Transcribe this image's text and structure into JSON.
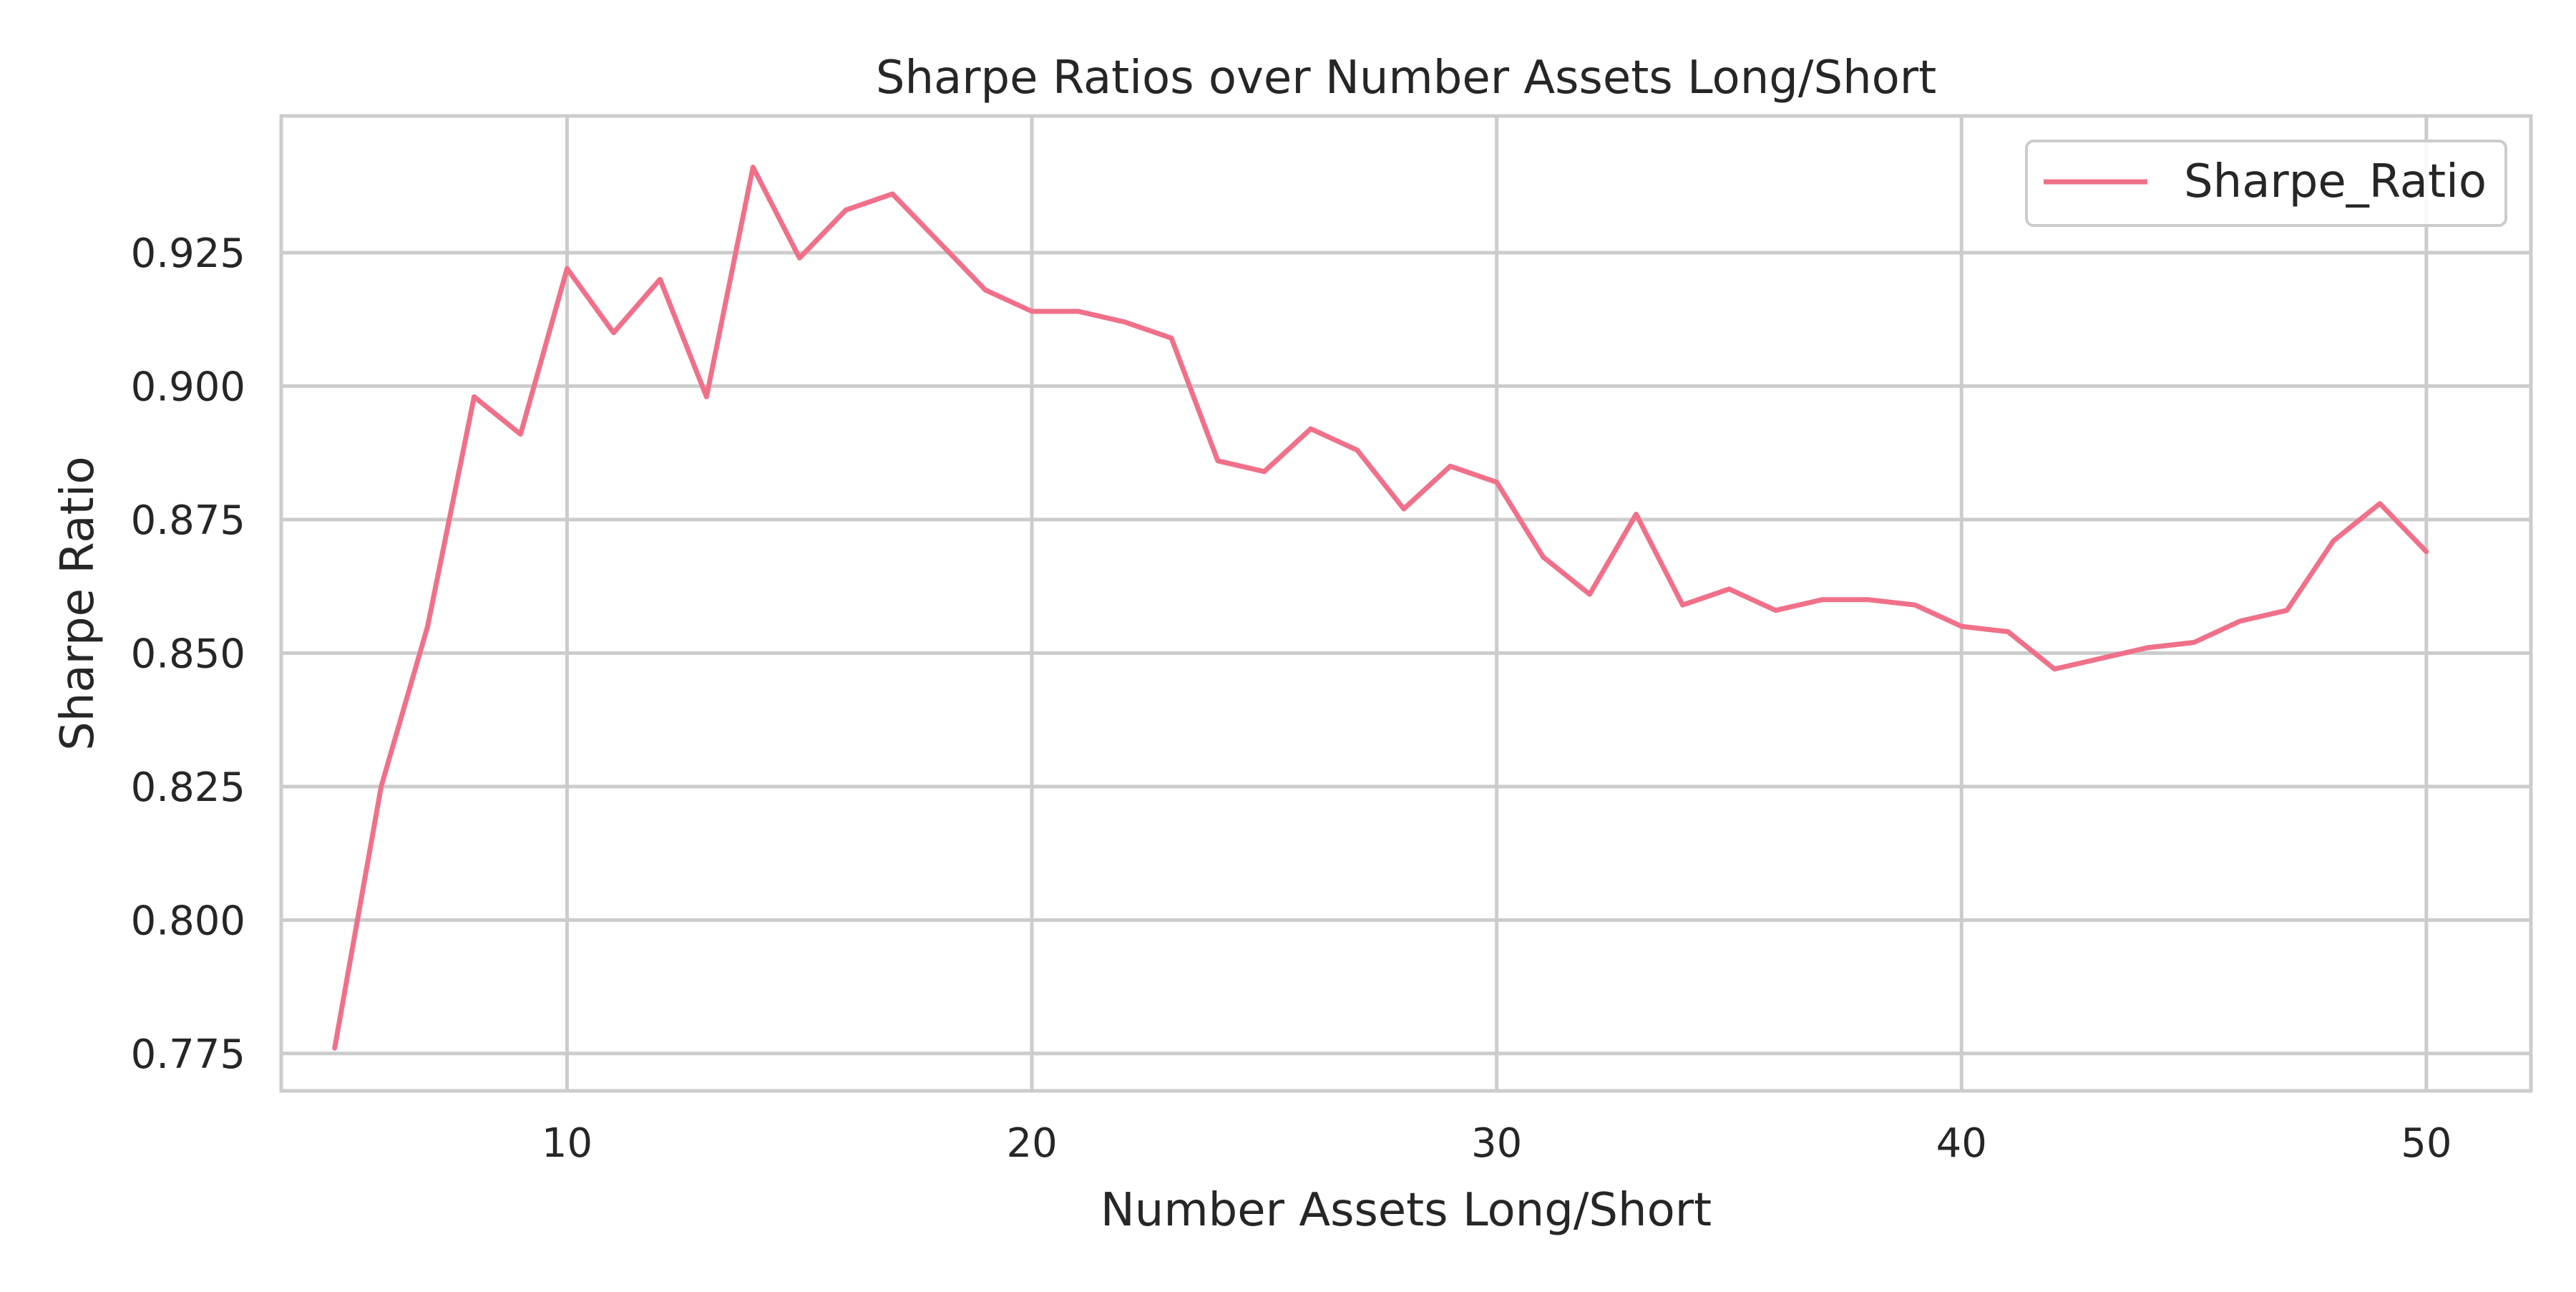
{
  "chart_data": {
    "type": "line",
    "title": "Sharpe Ratios over Number Assets Long/Short",
    "xlabel": "Number Assets Long/Short",
    "ylabel": "Sharpe Ratio",
    "xlim": [
      3.85,
      52.25
    ],
    "ylim": [
      0.768,
      0.9506
    ],
    "xticks": [
      10,
      20,
      30,
      40,
      50
    ],
    "xtick_labels": [
      "10",
      "20",
      "30",
      "40",
      "50"
    ],
    "yticks": [
      0.775,
      0.8,
      0.825,
      0.85,
      0.875,
      0.9,
      0.925
    ],
    "ytick_labels": [
      "0.775",
      "0.800",
      "0.825",
      "0.850",
      "0.875",
      "0.900",
      "0.925"
    ],
    "grid": true,
    "legend_position": "top-right",
    "series": [
      {
        "name": "Sharpe_Ratio",
        "color": "#f0708a",
        "x": [
          5,
          6,
          7,
          8,
          9,
          10,
          11,
          12,
          13,
          14,
          15,
          16,
          17,
          18,
          19,
          20,
          21,
          22,
          23,
          24,
          25,
          26,
          27,
          28,
          29,
          30,
          31,
          32,
          33,
          34,
          35,
          36,
          37,
          38,
          39,
          40,
          41,
          42,
          43,
          44,
          45,
          46,
          47,
          48,
          49,
          50
        ],
        "y": [
          0.776,
          0.825,
          0.855,
          0.898,
          0.891,
          0.922,
          0.91,
          0.92,
          0.898,
          0.941,
          0.924,
          0.933,
          0.936,
          0.927,
          0.918,
          0.914,
          0.914,
          0.912,
          0.909,
          0.886,
          0.884,
          0.892,
          0.888,
          0.877,
          0.885,
          0.882,
          0.868,
          0.861,
          0.876,
          0.859,
          0.862,
          0.858,
          0.86,
          0.86,
          0.859,
          0.855,
          0.854,
          0.847,
          0.849,
          0.851,
          0.852,
          0.856,
          0.858,
          0.871,
          0.878,
          0.869
        ]
      }
    ]
  }
}
